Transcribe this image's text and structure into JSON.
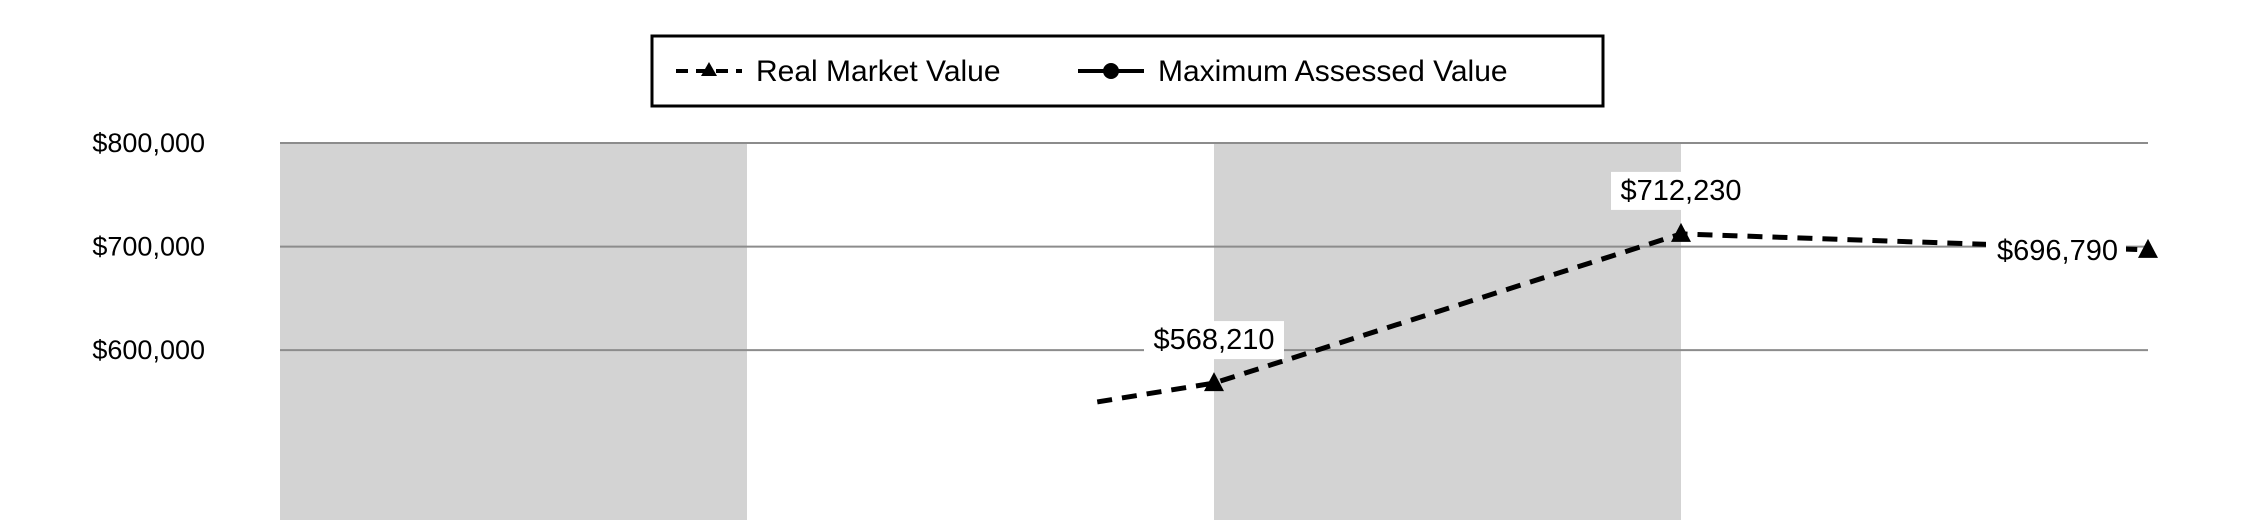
{
  "chart_data": {
    "type": "line",
    "title": "",
    "xlabel": "",
    "ylabel": "",
    "x_positions": [
      0,
      1,
      2,
      3,
      4
    ],
    "ylim": [
      436000,
      800000
    ],
    "y_ticks": [
      600000,
      700000,
      800000
    ],
    "y_tick_labels": [
      "$600,000",
      "$700,000",
      "$800,000"
    ],
    "grid": true,
    "shaded_bands": [
      [
        0,
        1
      ],
      [
        2,
        3
      ]
    ],
    "legend_placement": "top-center",
    "series": [
      {
        "name": "Real Market Value",
        "style": "dashed",
        "marker": "triangle",
        "x": [
          1.75,
          2,
          3,
          4
        ],
        "values": [
          550000,
          568210,
          712230,
          696790
        ],
        "labels": [
          "",
          "$568,210",
          "$712,230",
          "$696,790"
        ]
      },
      {
        "name": "Maximum Assessed Value",
        "style": "solid",
        "marker": "circle",
        "x": [],
        "values": [],
        "labels": []
      }
    ],
    "colors": {
      "line": "#000000",
      "band": "#d3d3d3",
      "grid": "#8c8c8c"
    }
  }
}
